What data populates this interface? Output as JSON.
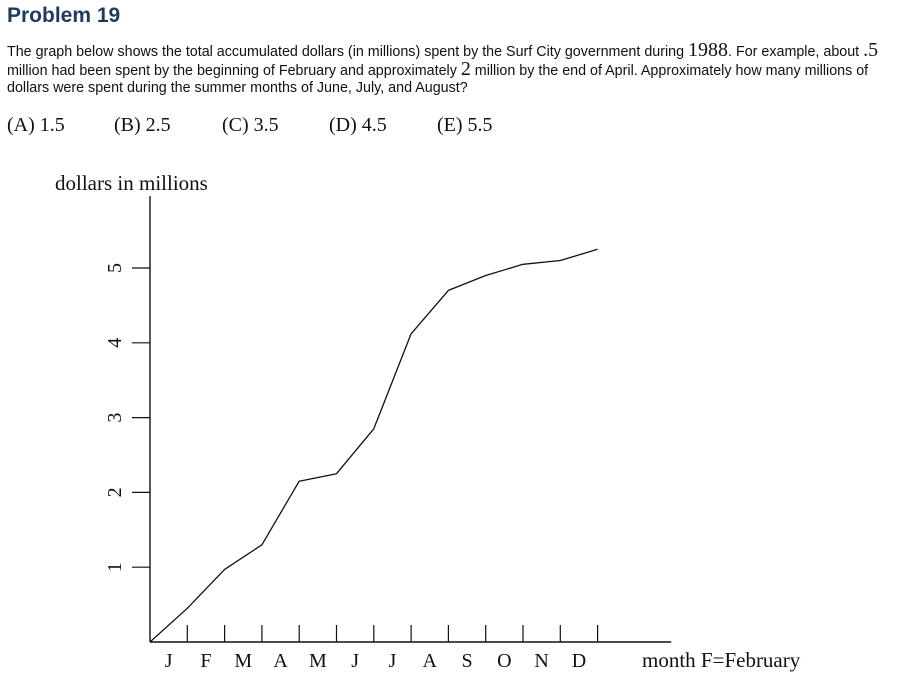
{
  "problem": {
    "title": "Problem 19",
    "text_1": "The graph below shows the total accumulated dollars (in millions) spent by the Surf City government during ",
    "year": "1988",
    "text_2": ". For example, about ",
    "example_1": ".5",
    "text_3": " million had been spent by the beginning of February and approximately ",
    "example_2": "2",
    "text_4": " million by the end of April. Approximately how many millions of dollars were spent during the summer months of June, July, and August?"
  },
  "choices": [
    "(A) 1.5",
    "(B) 2.5",
    "(C) 3.5",
    "(D) 4.5",
    "(E) 5.5"
  ],
  "chart_data": {
    "type": "line",
    "ylabel": "dollars in millions",
    "xlabel": "month F=February",
    "yticks": [
      1,
      2,
      3,
      4,
      5
    ],
    "categories": [
      "J",
      "F",
      "M",
      "A",
      "M",
      "J",
      "J",
      "A",
      "S",
      "O",
      "N",
      "D"
    ],
    "ylim": [
      0,
      5.6
    ],
    "xlim": [
      0,
      14
    ],
    "grid": false,
    "series": [
      {
        "x": [
          0,
          1,
          2,
          3,
          4,
          5,
          6,
          7,
          8,
          9,
          10,
          11,
          12
        ],
        "values": [
          0,
          0.45,
          0.97,
          1.3,
          2.15,
          2.25,
          2.85,
          4.12,
          4.7,
          4.9,
          5.05,
          5.1,
          5.25
        ]
      }
    ]
  }
}
